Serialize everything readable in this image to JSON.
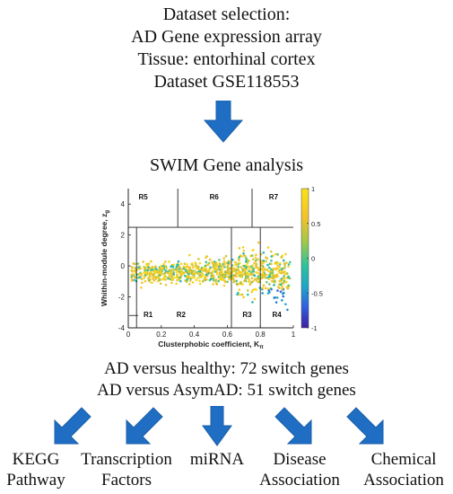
{
  "top_block": {
    "lines": [
      "Dataset selection:",
      "AD Gene expression array",
      "Tissue: entorhinal cortex",
      "Dataset GSE118553"
    ]
  },
  "middle_title": "SWIM Gene analysis",
  "results": {
    "line1": "AD versus healthy: 72 switch genes",
    "line2": "AD versus AsymAD: 51 switch genes"
  },
  "outputs": [
    {
      "line1": "KEGG",
      "line2": "Pathway"
    },
    {
      "line1": "Transcription",
      "line2": "Factors"
    },
    {
      "line1": "miRNA",
      "line2": ""
    },
    {
      "line1": "Disease",
      "line2": "Association"
    },
    {
      "line1": "Chemical",
      "line2": "Association"
    }
  ],
  "colors": {
    "arrow": "#1f6ec4",
    "colormap": [
      "#3e1f9e",
      "#2f5fe0",
      "#1fa7c7",
      "#2fc39a",
      "#a3c84a",
      "#f6c22a",
      "#f9e21a"
    ]
  },
  "chart_data": {
    "type": "scatter",
    "xlabel": "Clusterphobic coefficient, K",
    "xlabel_subscript": "π",
    "ylabel": "Whithin-module degree, z",
    "ylabel_subscript": "g",
    "xlim": [
      0,
      1
    ],
    "ylim": [
      -4,
      5
    ],
    "x_ticks": [
      "0",
      "0.2",
      "0.4",
      "0.6",
      "0.8",
      "1"
    ],
    "y_ticks": [
      "-4",
      "-2",
      "0",
      "2",
      "4"
    ],
    "colorbar": {
      "min": -1,
      "max": 1,
      "ticks": [
        "1",
        "0.5",
        "0",
        "-0.5",
        "-1"
      ]
    },
    "regions": [
      "R1",
      "R2",
      "R3",
      "R4",
      "R5",
      "R6",
      "R7"
    ],
    "threshold_lines": {
      "z": 2.5,
      "x_lower": [
        0.05,
        0.625,
        0.8
      ],
      "x_upper": [
        0.3,
        0.75
      ]
    }
  }
}
